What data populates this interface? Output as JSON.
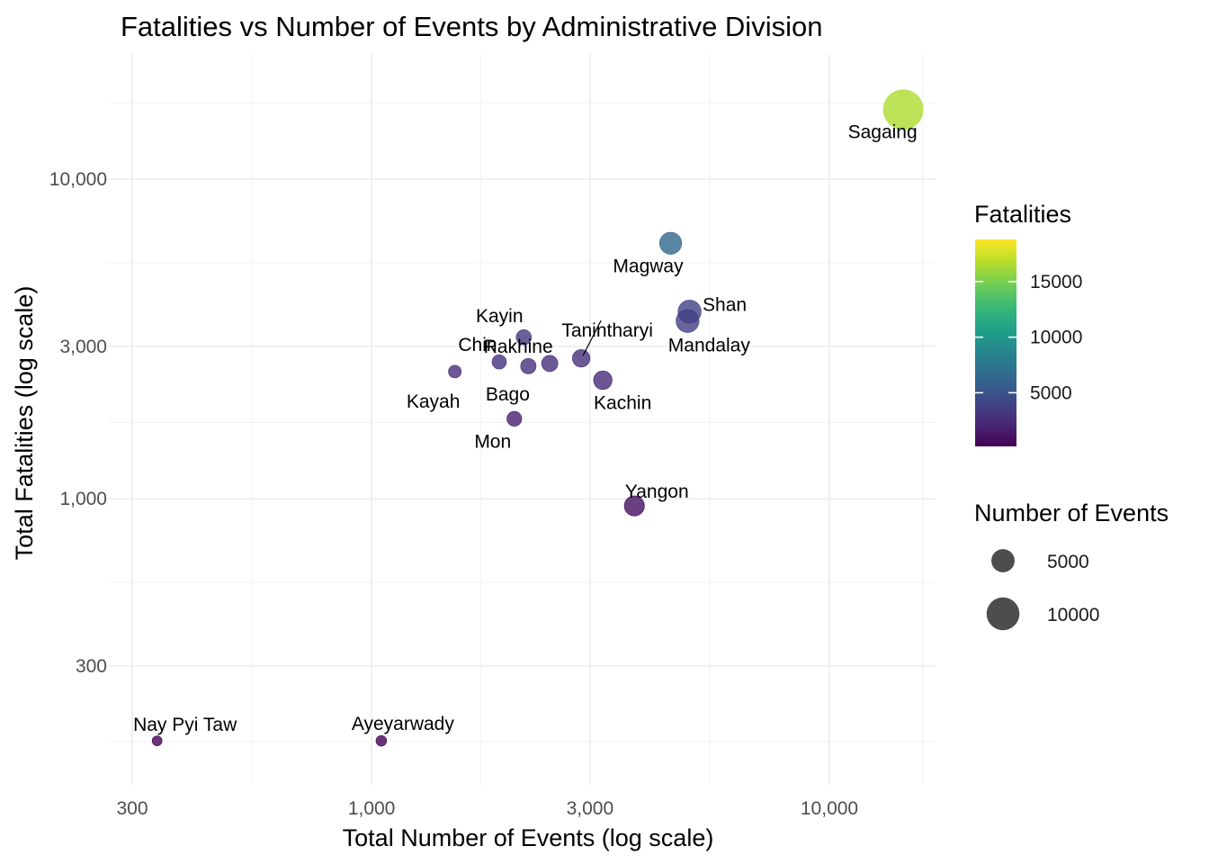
{
  "chart_data": {
    "type": "scatter",
    "title": "Fatalities vs Number of Events by Administrative Division",
    "xlabel": "Total Number of Events (log scale)",
    "ylabel": "Total Fatalities (log scale)",
    "x_scale": "log10",
    "y_scale": "log10",
    "xlim": [
      270,
      16000
    ],
    "ylim": [
      155,
      19000
    ],
    "x_ticks": [
      300,
      1000,
      3000,
      10000
    ],
    "x_tick_labels": [
      "300",
      "1,000",
      "3,000",
      "10,000"
    ],
    "y_ticks": [
      300,
      1000,
      3000,
      10000
    ],
    "y_tick_labels": [
      "300",
      "1,000",
      "3,000",
      "10,000"
    ],
    "grid": true,
    "color_legend": {
      "title": "Fatalities",
      "colormap": "viridis",
      "range": [
        170,
        18800
      ],
      "ticks": [
        5000,
        10000,
        15000
      ],
      "tick_labels": [
        "5000",
        "10000",
        "15000"
      ]
    },
    "size_legend": {
      "title": "Number of Events",
      "values": [
        5000,
        10000
      ],
      "labels": [
        "5000",
        "10000"
      ],
      "color": "#4d4d4d"
    },
    "legend_position": "right",
    "points": [
      {
        "name": "Sagaing",
        "events": 14500,
        "fatalities": 16500
      },
      {
        "name": "Magway",
        "events": 4500,
        "fatalities": 6300
      },
      {
        "name": "Shan",
        "events": 4950,
        "fatalities": 3850
      },
      {
        "name": "Mandalay",
        "events": 4900,
        "fatalities": 3600
      },
      {
        "name": "Tanintharyi",
        "events": 2870,
        "fatalities": 2750
      },
      {
        "name": "Kayin",
        "events": 2150,
        "fatalities": 3200
      },
      {
        "name": "Rakhine",
        "events": 2450,
        "fatalities": 2650
      },
      {
        "name": "Bago",
        "events": 2200,
        "fatalities": 2600
      },
      {
        "name": "Chin",
        "events": 1900,
        "fatalities": 2680
      },
      {
        "name": "Kayah",
        "events": 1520,
        "fatalities": 2500
      },
      {
        "name": "Kachin",
        "events": 3200,
        "fatalities": 2350
      },
      {
        "name": "Mon",
        "events": 2050,
        "fatalities": 1780
      },
      {
        "name": "Yangon",
        "events": 3750,
        "fatalities": 950
      },
      {
        "name": "Ayeyarwady",
        "events": 1050,
        "fatalities": 175
      },
      {
        "name": "Nay Pyi Taw",
        "events": 340,
        "fatalities": 175
      }
    ]
  }
}
